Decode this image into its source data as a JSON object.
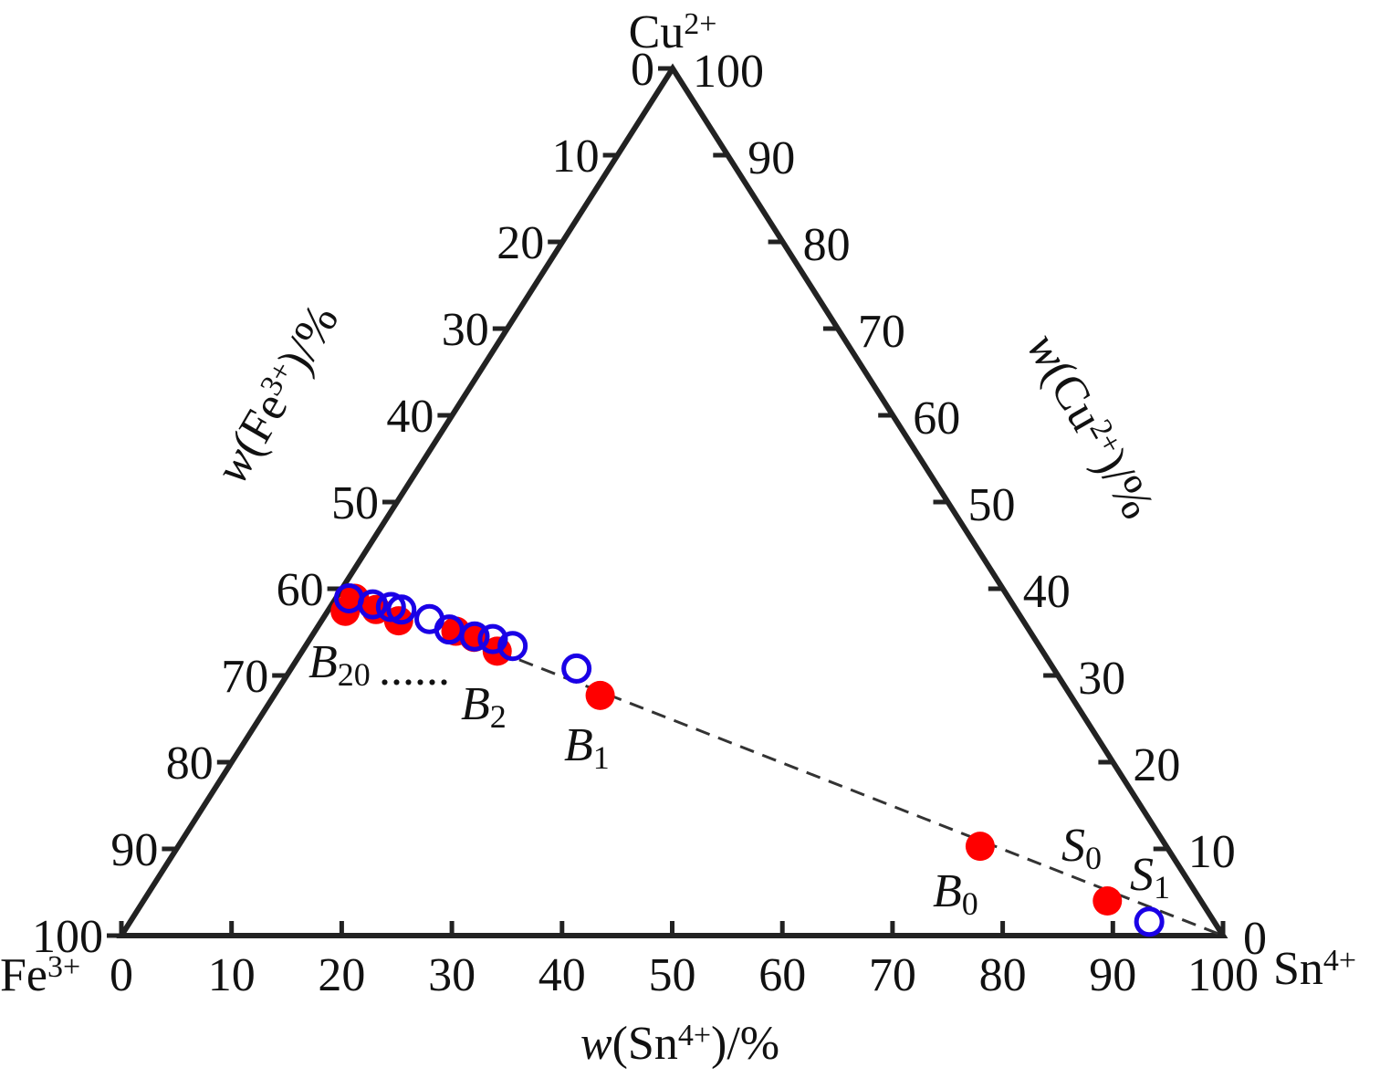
{
  "chart_data": {
    "type": "ternary",
    "vertices": {
      "top": {
        "text": "Cu",
        "sup": "2+"
      },
      "left": {
        "text": "Fe",
        "sup": "3+"
      },
      "right": {
        "text": "Sn",
        "sup": "4+"
      }
    },
    "axes": {
      "bottom": {
        "title": {
          "italic": "w",
          "text": "(Sn",
          "sup": "4+",
          "tail": ")/%"
        },
        "lim": [
          0,
          100
        ],
        "ticks": [
          0,
          10,
          20,
          30,
          40,
          50,
          60,
          70,
          80,
          90,
          100
        ]
      },
      "left": {
        "title": {
          "italic": "w",
          "text": "(Fe",
          "sup": "3+",
          "tail": ")/%"
        },
        "lim": [
          0,
          100
        ],
        "ticks": [
          0,
          10,
          20,
          30,
          40,
          50,
          60,
          70,
          80,
          90,
          100
        ]
      },
      "right": {
        "title": {
          "italic": "w",
          "text": "(Cu",
          "sup": "2+",
          "tail": ")/%"
        },
        "lim": [
          0,
          100
        ],
        "ticks": [
          0,
          10,
          20,
          30,
          40,
          50,
          60,
          70,
          80,
          90,
          100
        ]
      }
    },
    "series": [
      {
        "color": "#ff0000",
        "marker": "filled",
        "sn": [
          1.6,
          1.7,
          4.3,
          7.0,
          12.8,
          14.8,
          17.7,
          29.6,
          72.8,
          87.5
        ],
        "cu": [
          37.4,
          38.9,
          37.6,
          36.3,
          35.1,
          34.4,
          32.8,
          27.7,
          10.3,
          4.0
        ]
      },
      {
        "color": "#1a00e6",
        "marker": "open",
        "sn": [
          1.2,
          3.7,
          5.5,
          6.6,
          9.7,
          12.1,
          14.8,
          16.6,
          18.8,
          25.9,
          92.5
        ],
        "cu": [
          38.9,
          38.2,
          37.9,
          37.6,
          36.5,
          35.3,
          34.5,
          34.2,
          33.4,
          30.8,
          1.6
        ]
      }
    ],
    "annotations": [
      {
        "text": "B",
        "sub": "20"
      },
      {
        "text": "......"
      },
      {
        "text": "B",
        "sub": "2"
      },
      {
        "text": "B",
        "sub": "1"
      },
      {
        "text": "B",
        "sub": "0"
      },
      {
        "text": "S",
        "sub": "0"
      },
      {
        "text": "S",
        "sub": "1"
      }
    ]
  }
}
